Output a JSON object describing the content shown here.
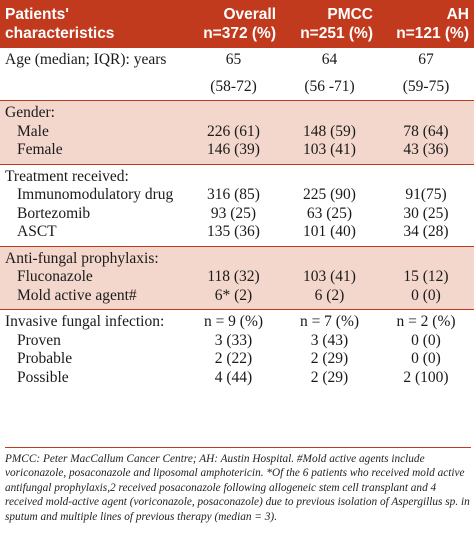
{
  "header": {
    "col0": "Patients' characteristics",
    "col1": [
      "Overall",
      "n=372 (%)"
    ],
    "col2": [
      "PMCC",
      "n=251 (%)"
    ],
    "col3": [
      "AH",
      "n=121 (%)"
    ]
  },
  "age": {
    "label": "Age (median; IQR): years",
    "v": [
      "65",
      "64",
      "67"
    ],
    "iqr": [
      "(58-72)",
      "(56 -71)",
      "(59-75)"
    ]
  },
  "gender": {
    "label": "Gender:",
    "rows": [
      {
        "label": "Male",
        "v": [
          "226 (61)",
          "148 (59)",
          "78  (64)"
        ]
      },
      {
        "label": "Female",
        "v": [
          "146 (39)",
          "103 (41)",
          "43  (36)"
        ]
      }
    ]
  },
  "treatment": {
    "label": "Treatment received:",
    "rows": [
      {
        "label": "Immunomodulatory drug",
        "v": [
          "316 (85)",
          "225 (90)",
          "91(75)"
        ]
      },
      {
        "label": "Bortezomib",
        "v": [
          "93   (25)",
          "63 (25)",
          "30  (25)"
        ]
      },
      {
        "label": "ASCT",
        "v": [
          "135 (36)",
          "101 (40)",
          "34  (28)"
        ]
      }
    ]
  },
  "prophylaxis": {
    "label": "Anti-fungal prophylaxis:",
    "rows": [
      {
        "label": "Fluconazole",
        "v": [
          "118 (32)",
          "103 (41)",
          "15  (12)"
        ]
      },
      {
        "label": "Mold active agent#",
        "v": [
          "6* (2)",
          "6 (2)",
          "0  (0)"
        ]
      }
    ]
  },
  "infection": {
    "label": "Invasive fungal infection:",
    "v": [
      "n = 9 (%)",
      "n = 7 (%)",
      "n = 2 (%)"
    ],
    "rows": [
      {
        "label": "Proven",
        "v": [
          "3 (33)",
          "3 (43)",
          "0 (0)"
        ]
      },
      {
        "label": "Probable",
        "v": [
          "2 (22)",
          "2 (29)",
          "0 (0)"
        ]
      },
      {
        "label": "Possible",
        "v": [
          "4 (44)",
          "2 (29)",
          "2 (100)"
        ]
      }
    ]
  },
  "footnote": "PMCC: Peter MacCallum Cancer Centre; AH: Austin Hospital. #Mold active agents include voriconazole, posaconazole and liposomal amphotericin. *Of the 6 patients who received mold active antifungal prophylaxis,2 received posaconazole following allogeneic stem cell transplant and 4 received mold-active agent (voriconazole, posaconazole) due to previous isolation of Aspergillus sp. in sputum and multiple lines of previous therapy (median = 3).",
  "colors": {
    "header_bg": "#c23a1e",
    "shade_bg": "#f3d7cc"
  }
}
